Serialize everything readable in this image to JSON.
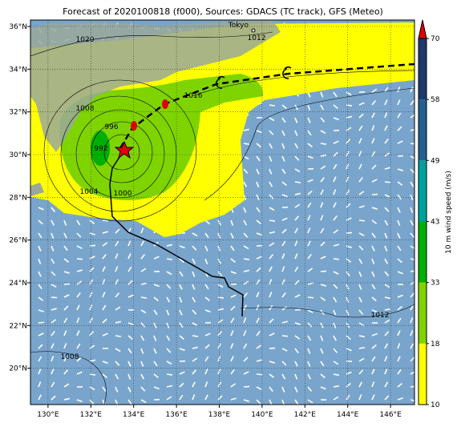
{
  "title": "Forecast of 2020100818 (f000), Sources: GDACS (TC track), GFS (Meteo)",
  "map": {
    "lonlim": [
      129.18,
      147.12
    ],
    "latlim": [
      18.3,
      36.3
    ],
    "lonticks": [
      {
        "value": 130,
        "label": "130°E"
      },
      {
        "value": 132,
        "label": "132°E"
      },
      {
        "value": 134,
        "label": "134°E"
      },
      {
        "value": 136,
        "label": "136°E"
      },
      {
        "value": 138,
        "label": "138°E"
      },
      {
        "value": 140,
        "label": "140°E"
      },
      {
        "value": 142,
        "label": "142°E"
      },
      {
        "value": 144,
        "label": "144°E"
      },
      {
        "value": 146,
        "label": "146°E"
      }
    ],
    "latticks": [
      {
        "value": 20,
        "label": "20°N"
      },
      {
        "value": 22,
        "label": "22°N"
      },
      {
        "value": 24,
        "label": "24°N"
      },
      {
        "value": 26,
        "label": "26°N"
      },
      {
        "value": 28,
        "label": "28°N"
      },
      {
        "value": 30,
        "label": "30°N"
      },
      {
        "value": 32,
        "label": "32°N"
      },
      {
        "value": 34,
        "label": "34°N"
      },
      {
        "value": 36,
        "label": "36°N"
      }
    ],
    "grid": true,
    "city": "Tokyo",
    "isobar_labels": [
      "1020",
      "1016",
      "1008",
      "996",
      "992",
      "1004",
      "1000",
      "1012",
      "1008",
      "1012"
    ]
  },
  "colorbar": {
    "label": "10 m wind speed (m/s)",
    "ticks": [
      10,
      18,
      33,
      43,
      49,
      58,
      70
    ],
    "colors": [
      "#ffff00",
      "#7fd400",
      "#00b000",
      "#00a0a0",
      "#22608f",
      "#1c3a6a"
    ],
    "extend_color": "#e00000"
  }
}
